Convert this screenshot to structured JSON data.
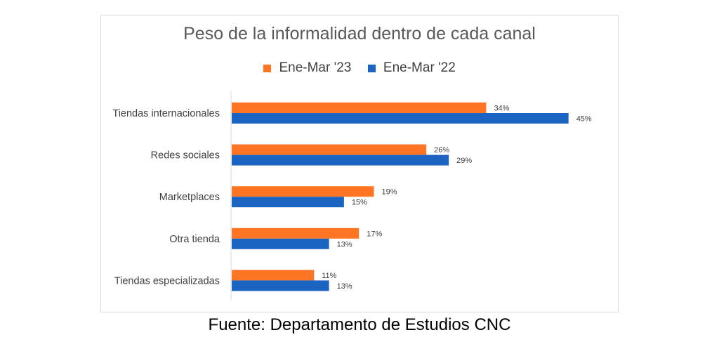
{
  "chart_data": {
    "type": "bar",
    "orientation": "horizontal",
    "title": "Peso de la informalidad dentro de cada canal",
    "categories": [
      "Tiendas internacionales",
      "Redes sociales",
      "Marketplaces",
      "Otra tienda",
      "Tiendas especializadas"
    ],
    "series": [
      {
        "name": "Ene-Mar '23",
        "values": [
          34,
          26,
          19,
          17,
          11
        ],
        "labels": [
          "34%",
          "26%",
          "19%",
          "17%",
          "11%"
        ],
        "color": "#ff7524"
      },
      {
        "name": "Ene-Mar '22",
        "values": [
          45,
          29,
          15,
          13,
          13
        ],
        "labels": [
          "45%",
          "29%",
          "15%",
          "13%",
          "13%"
        ],
        "color": "#1b64c2"
      }
    ],
    "xlim": [
      0,
      50
    ],
    "grid": false,
    "legend_position": "top-center"
  },
  "source": "Fuente: Departamento de Estudios CNC"
}
